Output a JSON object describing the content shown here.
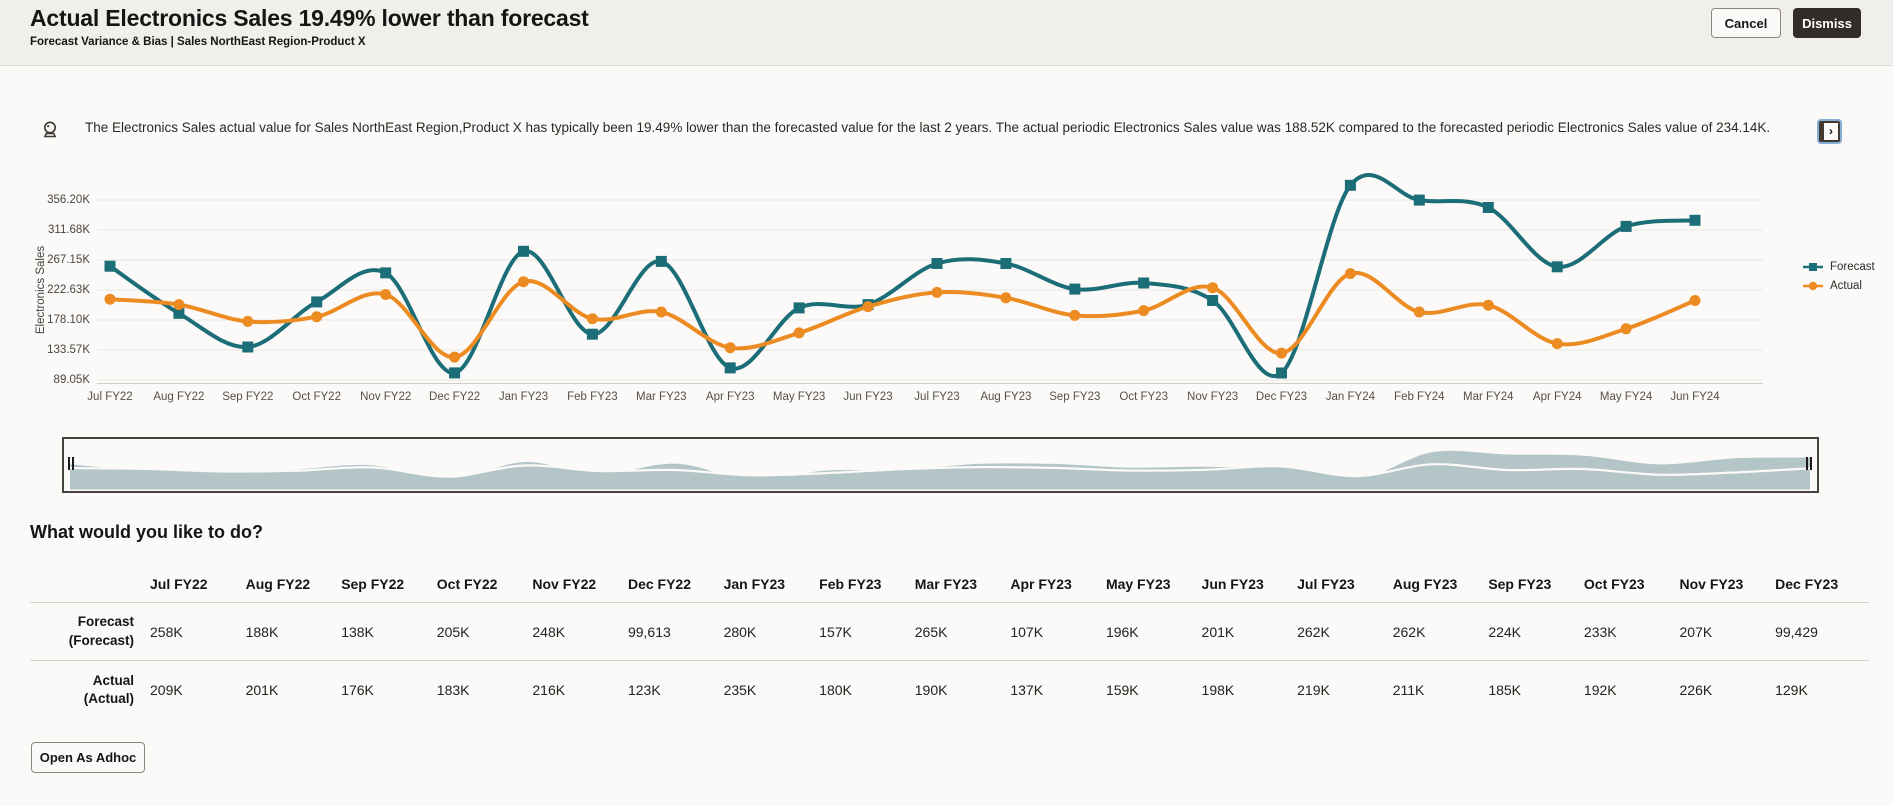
{
  "header": {
    "title": "Actual Electronics Sales 19.49% lower than forecast",
    "subtitle": "Forecast Variance & Bias | Sales NorthEast Region-Product X",
    "cancel_label": "Cancel",
    "dismiss_label": "Dismiss"
  },
  "insight": {
    "text": "The Electronics Sales actual value for Sales NorthEast Region,Product X has typically been 19.49% lower than the forecasted value for the last 2 years. The actual periodic Electronics Sales value was 188.52K compared to the forecasted periodic Electronics Sales value of 234.14K.",
    "icons": [
      "insight-lamp-icon",
      "expand-panel-icon"
    ],
    "expand_chevron": "›"
  },
  "chart_data": {
    "type": "line",
    "ylabel": "Electronics Sales",
    "categories": [
      "Jul FY22",
      "Aug FY22",
      "Sep FY22",
      "Oct FY22",
      "Nov FY22",
      "Dec FY22",
      "Jan FY23",
      "Feb FY23",
      "Mar FY23",
      "Apr FY23",
      "May FY23",
      "Jun FY23",
      "Jul FY23",
      "Aug FY23",
      "Sep FY23",
      "Oct FY23",
      "Nov FY23",
      "Dec FY23",
      "Jan FY24",
      "Feb FY24",
      "Mar FY24",
      "Apr FY24",
      "May FY24",
      "Jun FY24"
    ],
    "series": [
      {
        "name": "Forecast",
        "color": "#1b6d77",
        "marker": "square",
        "values_k": [
          258,
          188,
          138,
          205,
          248,
          99.613,
          280,
          157,
          265,
          107,
          196,
          201,
          262,
          262,
          224,
          233,
          207,
          99.429,
          378,
          356,
          345,
          257,
          317,
          326
        ]
      },
      {
        "name": "Actual",
        "color": "#ed8b23",
        "marker": "circle",
        "values_k": [
          209,
          201,
          176,
          183,
          216,
          123,
          235,
          180,
          190,
          137,
          159,
          198,
          219,
          211,
          185,
          192,
          226,
          129,
          247,
          190,
          200,
          143,
          165,
          207
        ]
      }
    ],
    "y_ticks": [
      {
        "label": "356.20K",
        "value_k": 356.2
      },
      {
        "label": "311.68K",
        "value_k": 311.68
      },
      {
        "label": "267.15K",
        "value_k": 267.15
      },
      {
        "label": "222.63K",
        "value_k": 222.63
      },
      {
        "label": "178.10K",
        "value_k": 178.1
      },
      {
        "label": "133.57K",
        "value_k": 133.57
      },
      {
        "label": "89.05K",
        "value_k": 89.05
      }
    ],
    "ylim_k": [
      89.05,
      380
    ],
    "grid": "horizontal",
    "legend_position": "right",
    "overview_fill": "#b3c5c7"
  },
  "actions": {
    "heading": "What would you like to do?",
    "open_adhoc_label": "Open As Adhoc"
  },
  "table": {
    "columns": [
      "Jul FY22",
      "Aug FY22",
      "Sep FY22",
      "Oct FY22",
      "Nov FY22",
      "Dec FY22",
      "Jan FY23",
      "Feb FY23",
      "Mar FY23",
      "Apr FY23",
      "May FY23",
      "Jun FY23",
      "Jul FY23",
      "Aug FY23",
      "Sep FY23",
      "Oct FY23",
      "Nov FY23",
      "Dec FY23"
    ],
    "rows": [
      {
        "label_line1": "Forecast",
        "label_line2": "(Forecast)",
        "values": [
          "258K",
          "188K",
          "138K",
          "205K",
          "248K",
          "99,613",
          "280K",
          "157K",
          "265K",
          "107K",
          "196K",
          "201K",
          "262K",
          "262K",
          "224K",
          "233K",
          "207K",
          "99,429"
        ]
      },
      {
        "label_line1": "Actual",
        "label_line2": "(Actual)",
        "values": [
          "209K",
          "201K",
          "176K",
          "183K",
          "216K",
          "123K",
          "235K",
          "180K",
          "190K",
          "137K",
          "159K",
          "198K",
          "219K",
          "211K",
          "185K",
          "192K",
          "226K",
          "129K"
        ]
      }
    ]
  }
}
